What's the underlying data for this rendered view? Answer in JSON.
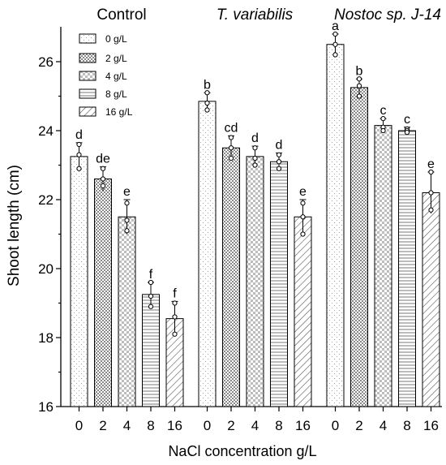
{
  "chart_data": {
    "type": "bar",
    "ylabel": "Shoot length (cm)",
    "xlabel": "NaCl concentration g/L",
    "ylim": [
      16,
      27
    ],
    "yticks": [
      16,
      18,
      20,
      22,
      24,
      26
    ],
    "categories": [
      "0",
      "2",
      "4",
      "8",
      "16"
    ],
    "legend": {
      "placement": "top-left",
      "entries": [
        "0 g/L",
        "2 g/L",
        "4 g/L",
        "8 g/L",
        "16 g/L"
      ]
    },
    "groups": [
      {
        "title": "Control",
        "italic": false,
        "values": [
          23.25,
          22.6,
          21.5,
          19.25,
          18.55
        ],
        "errors": [
          0.4,
          0.35,
          0.5,
          0.35,
          0.5
        ],
        "letters": [
          "d",
          "de",
          "e",
          "f",
          "f"
        ],
        "points": [
          [
            23.6,
            23.3,
            22.9
          ],
          [
            22.9,
            22.6,
            22.4
          ],
          [
            21.9,
            21.4,
            21.1
          ],
          [
            19.6,
            19.2,
            18.9
          ],
          [
            19.0,
            18.6,
            18.1
          ]
        ]
      },
      {
        "title": "T. variabilis",
        "italic": true,
        "values": [
          24.85,
          23.5,
          23.25,
          23.1,
          21.5
        ],
        "errors": [
          0.25,
          0.35,
          0.3,
          0.25,
          0.5
        ],
        "letters": [
          "b",
          "cd",
          "d",
          "d",
          "e"
        ],
        "points": [
          [
            25.1,
            24.8,
            24.6
          ],
          [
            23.8,
            23.5,
            23.2
          ],
          [
            23.5,
            23.2,
            23.0
          ],
          [
            23.3,
            23.1,
            22.9
          ],
          [
            21.9,
            21.5,
            21.0
          ]
        ]
      },
      {
        "title": "Nostoc sp. J-14",
        "italic": true,
        "values": [
          26.5,
          25.25,
          24.15,
          24.0,
          22.2
        ],
        "errors": [
          0.3,
          0.25,
          0.2,
          0.1,
          0.6
        ],
        "letters": [
          "a",
          "b",
          "c",
          "c",
          "e"
        ],
        "points": [
          [
            26.8,
            26.5,
            26.2
          ],
          [
            25.5,
            25.3,
            25.0
          ],
          [
            24.35,
            24.1,
            24.0
          ],
          [
            24.05,
            24.0,
            23.95
          ],
          [
            22.8,
            22.2,
            21.7
          ]
        ]
      }
    ]
  }
}
